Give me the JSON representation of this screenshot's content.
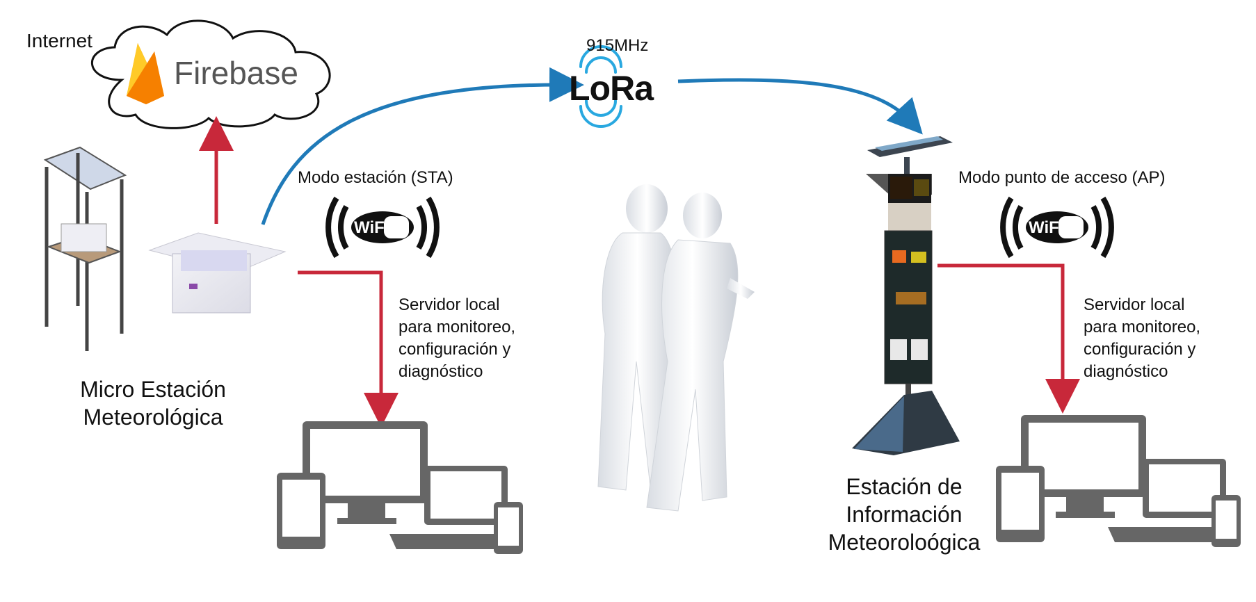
{
  "labels": {
    "internet": "Internet",
    "firebase": "Firebase",
    "freq": "915MHz",
    "lora": "LoRa",
    "sta_mode": "Modo estación (STA)",
    "ap_mode": "Modo punto de acceso (AP)",
    "wifi_text": "WiFi",
    "server_left": [
      "Servidor local",
      "para monitoreo,",
      "configuración y",
      "diagnóstico"
    ],
    "server_right": [
      "Servidor local",
      "para monitoreo,",
      "configuración y",
      "diagnóstico"
    ],
    "micro_station": [
      "Micro Estación",
      "Meteorológica"
    ],
    "info_station": [
      "Estación de",
      "Información",
      "Meteoroloógica"
    ]
  },
  "colors": {
    "red_arrow": "#c8283a",
    "blue_arrow": "#1f7ab8",
    "firebase_orange": "#f6a821",
    "firebase_yellow": "#ffca28",
    "device_gray": "#6b6b6b",
    "wifi_black": "#111111",
    "lora_blue": "#29a8e0"
  },
  "icons": [
    "cloud-icon",
    "firebase-flame-icon",
    "lora-signal-icon",
    "wifi-icon",
    "devices-icon",
    "people-figure",
    "kiosk-figure",
    "micro-station-figure"
  ]
}
